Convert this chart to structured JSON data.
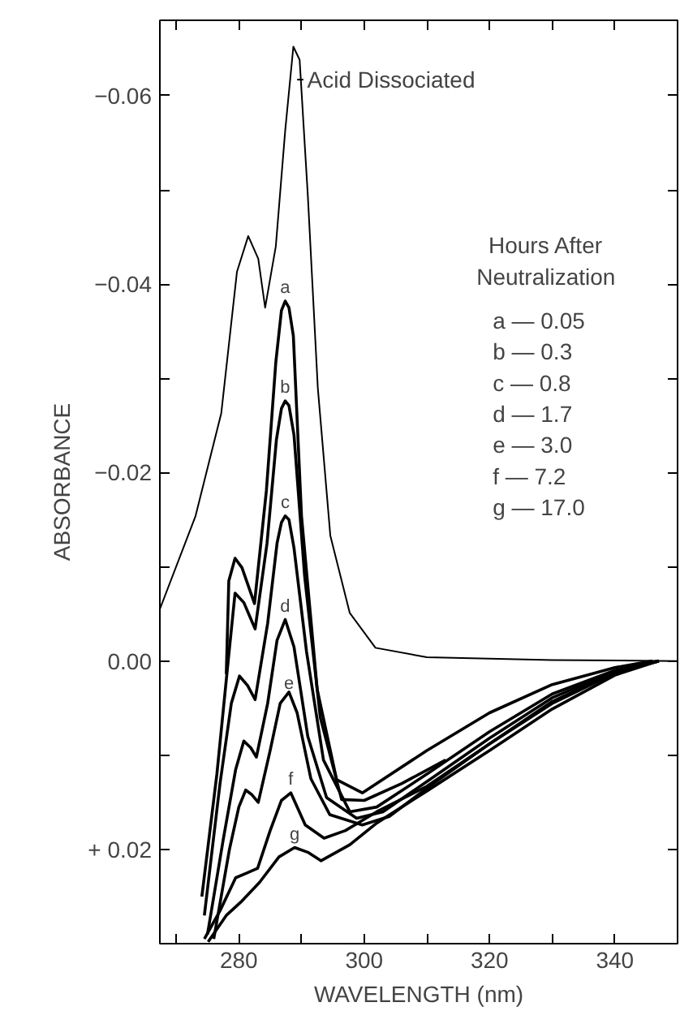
{
  "chart_data": {
    "type": "line",
    "xlabel": "WAVELENGTH (nm)",
    "ylabel": "ABSORBANCE",
    "legend_title": "Hours After\nNeutralization",
    "annotations": [
      "a — 0.05",
      "b — 0.3",
      "c — 0.8",
      "d — 1.7",
      "e — 3.0",
      "f — 7.2",
      "g — 17.0"
    ],
    "xlim": [
      267.4,
      350
    ],
    "ylim": [
      0.03,
      -0.068
    ],
    "xticks": [
      {
        "value": 270,
        "label": null
      },
      280,
      {
        "value": 290,
        "label": null
      },
      300,
      {
        "value": 310,
        "label": null
      },
      320,
      {
        "value": 330,
        "label": null
      },
      340
    ],
    "yticks": [
      {
        "value": -0.06,
        "label": "−0.06"
      },
      {
        "value": -0.05,
        "label": null
      },
      {
        "value": -0.04,
        "label": "−0.04"
      },
      {
        "value": -0.03,
        "label": null
      },
      {
        "value": -0.02,
        "label": "−0.02"
      },
      {
        "value": -0.01,
        "label": null
      },
      {
        "value": 0,
        "label": "0.00"
      },
      {
        "value": 0.01,
        "label": null
      },
      {
        "value": 0.02,
        "label": "+ 0.02"
      }
    ],
    "grid": false,
    "line_style": "solid",
    "series": [
      {
        "name": "Acid Dissociated",
        "color": "#000000",
        "x": [
          267.4,
          273.1,
          277.2,
          279.7,
          281.5,
          283.1,
          284.2,
          285.9,
          287.4,
          288.7,
          289.7,
          291.0,
          292.6,
          294.6,
          297.7,
          301.8,
          310,
          330,
          350
        ],
        "values": [
          -0.0055,
          -0.0154,
          -0.0263,
          -0.0413,
          -0.0451,
          -0.0427,
          -0.0375,
          -0.044,
          -0.0563,
          -0.0652,
          -0.0638,
          -0.0495,
          -0.029,
          -0.0133,
          -0.0051,
          -0.0014,
          -0.0004,
          -0.0001,
          0
        ]
      },
      {
        "name": "a",
        "color": "#000000",
        "x": [
          278.0,
          278.4,
          279.4,
          280.5,
          282.5,
          284.4,
          285.9,
          286.8,
          287.4,
          288.0,
          288.7,
          290.0,
          292.5,
          295.6,
          299.7,
          310,
          320,
          330,
          340,
          346
        ],
        "values": [
          0.0014,
          -0.0085,
          -0.0109,
          -0.0099,
          -0.0061,
          -0.0181,
          -0.0317,
          -0.0372,
          -0.0382,
          -0.0375,
          -0.0345,
          -0.0154,
          0.003,
          0.0126,
          0.014,
          0.0095,
          0.0055,
          0.0025,
          0.0007,
          0
        ]
      },
      {
        "name": "b",
        "color": "#000000",
        "x": [
          274.1,
          276.5,
          278.3,
          279.4,
          280.8,
          282.6,
          284.5,
          286.0,
          286.8,
          287.4,
          288.0,
          288.8,
          290.5,
          293.0,
          296.4,
          300,
          306,
          313
        ],
        "values": [
          0.025,
          0.012,
          0.0,
          -0.0072,
          -0.0062,
          -0.0034,
          -0.0125,
          -0.0235,
          -0.0268,
          -0.0276,
          -0.0271,
          -0.024,
          -0.009,
          0.006,
          0.0147,
          0.0148,
          0.013,
          0.0105
        ]
      },
      {
        "name": "c",
        "color": "#000000",
        "x": [
          274.5,
          277,
          278.8,
          280.1,
          281.4,
          282.6,
          284.6,
          286.1,
          286.8,
          287.4,
          288.0,
          288.8,
          290.8,
          293.5,
          297.7,
          302,
          310,
          320,
          330,
          340,
          347
        ],
        "values": [
          0.027,
          0.013,
          0.0045,
          0.0016,
          0.0026,
          0.0041,
          -0.004,
          -0.0125,
          -0.0147,
          -0.0154,
          -0.015,
          -0.012,
          -0.001,
          0.0105,
          0.016,
          0.0155,
          0.012,
          0.0075,
          0.0035,
          0.001,
          0
        ]
      },
      {
        "name": "d",
        "color": "#000000",
        "x": [
          275,
          277.5,
          279.5,
          280.8,
          281.9,
          282.8,
          284.6,
          286.1,
          287.4,
          288.8,
          291,
          294,
          298.8,
          303,
          310,
          320,
          330,
          340,
          347
        ],
        "values": [
          0.029,
          0.019,
          0.0115,
          0.0085,
          0.0092,
          0.0102,
          0.0045,
          -0.0022,
          -0.0044,
          -0.0015,
          0.008,
          0.0145,
          0.0167,
          0.016,
          0.0128,
          0.0082,
          0.0039,
          0.0011,
          0
        ]
      },
      {
        "name": "e",
        "color": "#000000",
        "x": [
          276,
          278.5,
          280,
          281.1,
          282.1,
          283.1,
          285,
          286.6,
          288.0,
          289.3,
          291.5,
          294.5,
          299.7,
          304,
          310,
          320,
          330,
          340,
          347
        ],
        "values": [
          0.0295,
          0.02,
          0.0155,
          0.0137,
          0.0142,
          0.015,
          0.0095,
          0.0045,
          0.0033,
          0.0055,
          0.0125,
          0.0163,
          0.0174,
          0.0165,
          0.0135,
          0.0088,
          0.0043,
          0.0012,
          0
        ]
      },
      {
        "name": "f",
        "color": "#000000",
        "x": [
          274.5,
          277,
          279.5,
          281.3,
          283.0,
          285.0,
          286.8,
          288.3,
          290.6,
          293.6,
          297,
          302,
          310,
          320,
          330,
          340,
          347
        ],
        "values": [
          0.0295,
          0.0265,
          0.023,
          0.0225,
          0.022,
          0.018,
          0.0148,
          0.014,
          0.0174,
          0.0188,
          0.018,
          0.016,
          0.0133,
          0.0088,
          0.0045,
          0.0013,
          0
        ]
      },
      {
        "name": "g",
        "color": "#000000",
        "x": [
          275.1,
          278,
          280.3,
          283.3,
          286.4,
          288.9,
          291,
          293.1,
          297.7,
          302,
          310,
          320,
          330,
          340,
          347
        ],
        "values": [
          0.0298,
          0.027,
          0.0256,
          0.0235,
          0.0208,
          0.0198,
          0.0203,
          0.0212,
          0.0195,
          0.0172,
          0.0138,
          0.0095,
          0.0051,
          0.0015,
          0
        ]
      }
    ]
  }
}
